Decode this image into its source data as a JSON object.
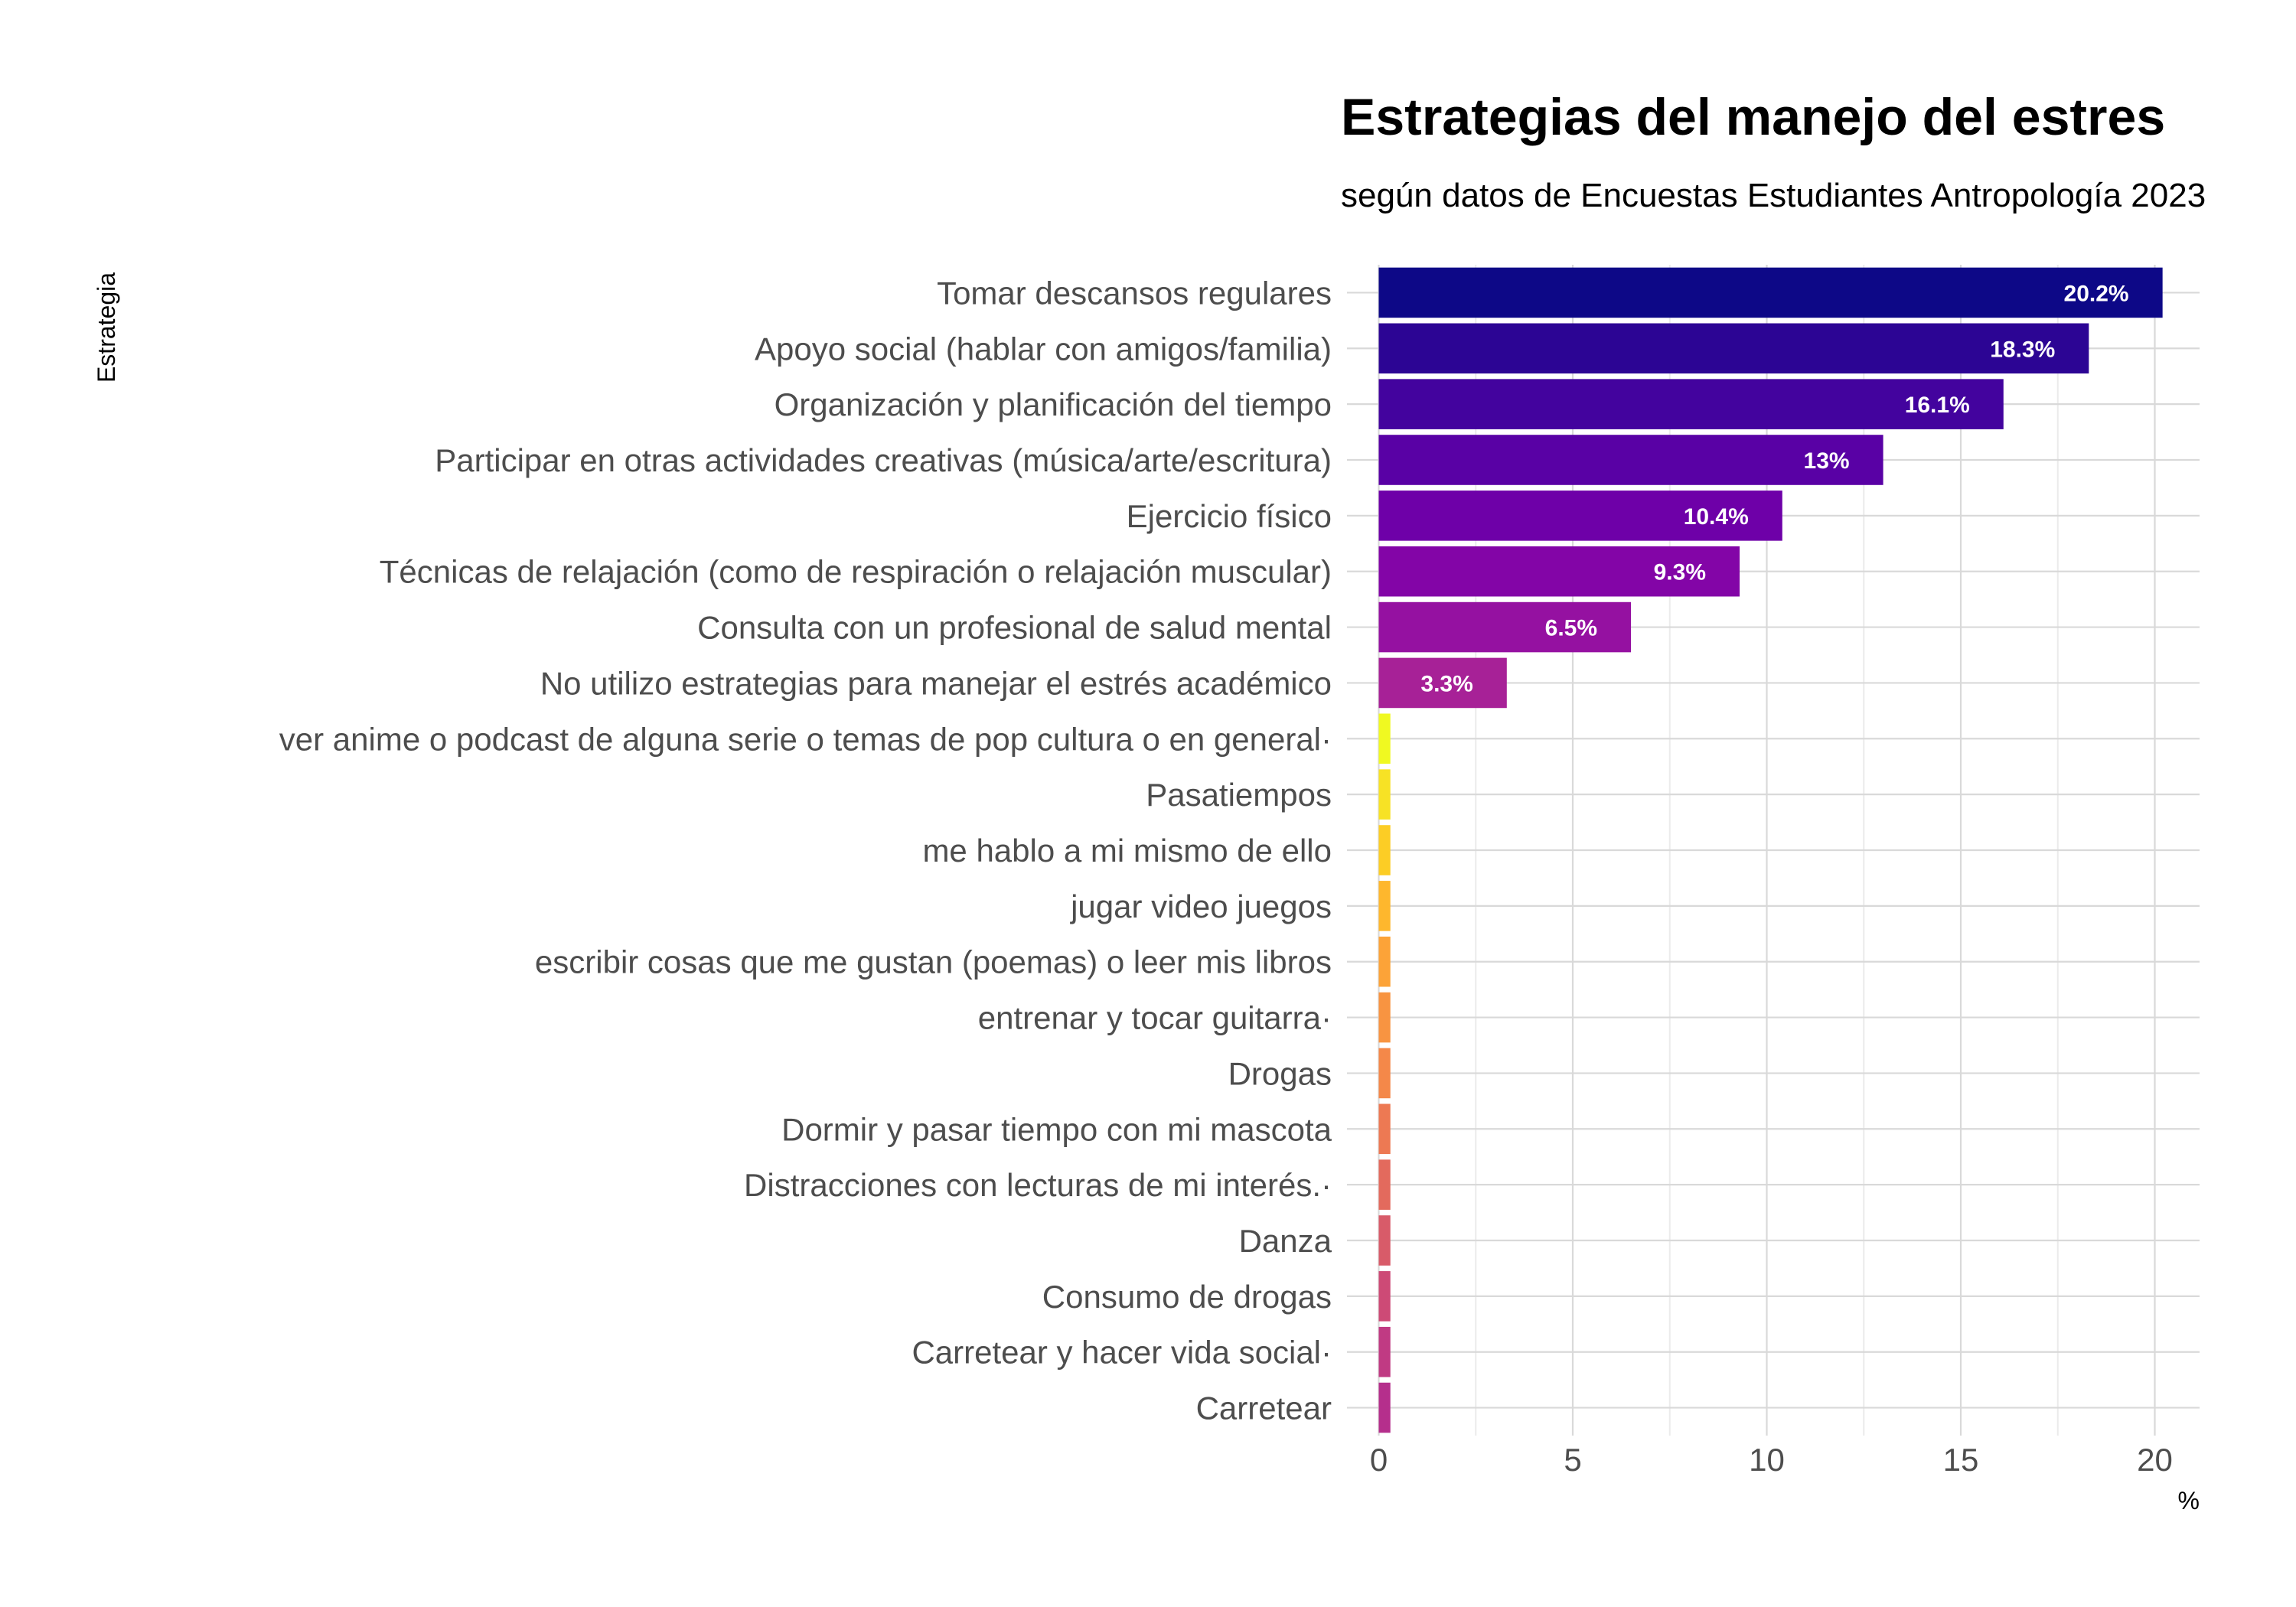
{
  "chart_data": {
    "type": "bar",
    "orientation": "horizontal",
    "title": "Estrategias del manejo del estres",
    "subtitle": "según datos de Encuestas Estudiantes Antropología 2023",
    "xlabel": "%",
    "ylabel": "Estrategia",
    "xlim": [
      0,
      21.2
    ],
    "xticks": [
      "0",
      "5",
      "10",
      "15",
      "20"
    ],
    "grid": true,
    "categories": [
      "Tomar descansos regulares",
      "Apoyo social (hablar con amigos/familia)",
      "Organización y planificación del tiempo",
      "Participar en otras actividades creativas (música/arte/escritura)",
      "Ejercicio físico",
      "Técnicas de relajación (como de respiración o relajación muscular)",
      "Consulta con un profesional de salud mental",
      "No utilizo estrategias para manejar el estrés académico",
      "ver anime o podcast de alguna serie o temas de pop cultura o en general·",
      "Pasatiempos",
      "me hablo a mi mismo de ello",
      "jugar video juegos",
      "escribir cosas que me gustan (poemas) o leer mis libros",
      "entrenar y tocar guitarra·",
      "Drogas",
      "Dormir y pasar tiempo con mi mascota",
      "Distracciones con lecturas de mi interés.·",
      "Danza",
      "Consumo de drogas",
      "Carretear y hacer vida social·",
      "Carretear"
    ],
    "values": [
      20.2,
      18.3,
      16.1,
      13,
      10.4,
      9.3,
      6.5,
      3.3,
      0.3,
      0.3,
      0.3,
      0.3,
      0.3,
      0.3,
      0.3,
      0.3,
      0.3,
      0.3,
      0.3,
      0.3,
      0.3
    ],
    "data_labels": [
      "20.2%",
      "18.3%",
      "16.1%",
      "13%",
      "10.4%",
      "9.3%",
      "6.5%",
      "3.3%",
      "",
      "",
      "",
      "",
      "",
      "",
      "",
      "",
      "",
      "",
      "",
      "",
      ""
    ],
    "colors": [
      "#0d0887",
      "#2c0594",
      "#43039e",
      "#5901a5",
      "#6e00a8",
      "#8305a7",
      "#9511a1",
      "#a72197",
      "#f0f921",
      "#f7e225",
      "#fccd25",
      "#feb72d",
      "#fca338",
      "#f89441",
      "#f48849",
      "#ed7953",
      "#e36a5d",
      "#d85b69",
      "#cd4a76",
      "#c03a83",
      "#b52f8c"
    ]
  }
}
